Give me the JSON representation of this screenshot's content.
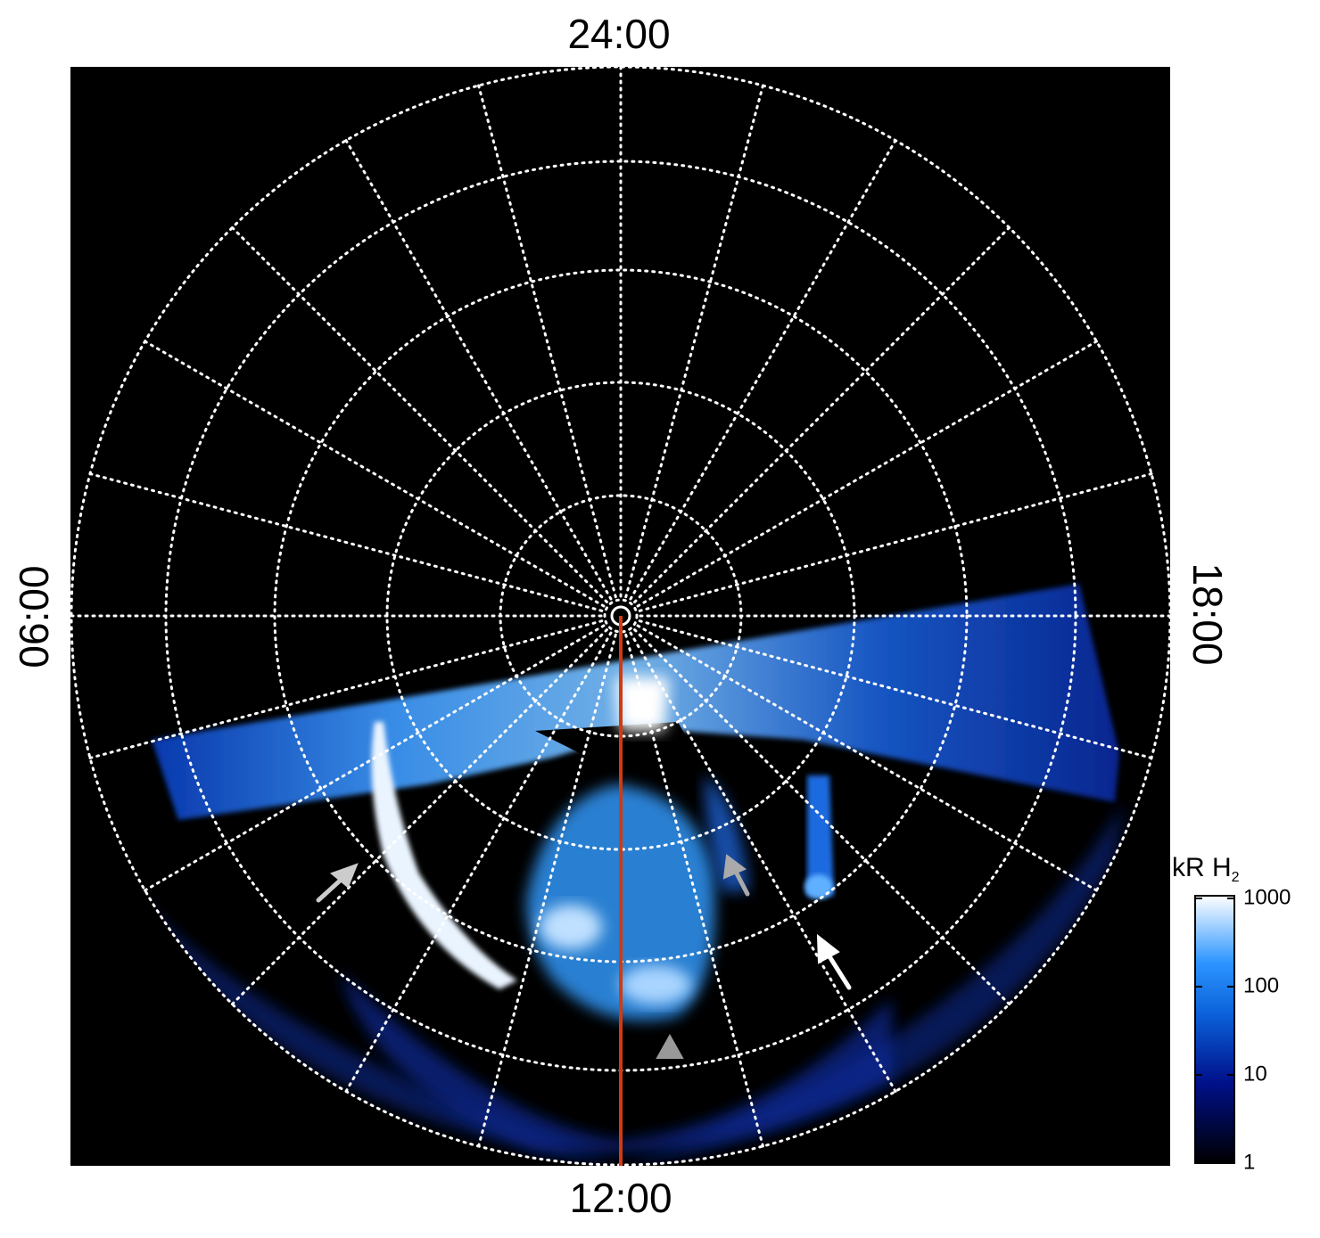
{
  "labels": {
    "top": "24:00",
    "bottom": "12:00",
    "left": "06:00",
    "right": "18:00"
  },
  "colorbar": {
    "label": "kR H",
    "label_subscript": "2",
    "scale": "log",
    "lim": [
      1,
      1000
    ],
    "ticks": [
      1,
      10,
      100,
      1000
    ]
  }
}
